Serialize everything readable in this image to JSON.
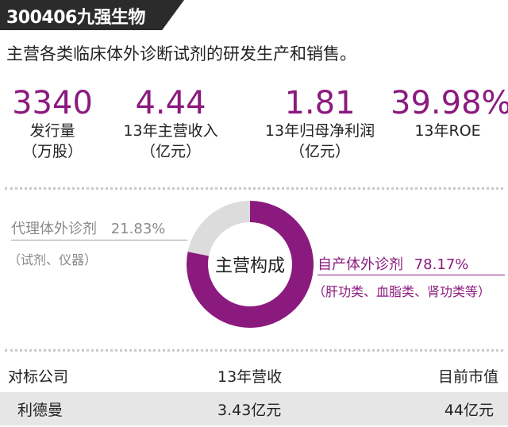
{
  "header": {
    "title": "300406九强生物",
    "subtitle": "主营各类临床体外诊断试剂的研发生产和销售。"
  },
  "stats": [
    {
      "value": "3340",
      "label1": "发行量",
      "label2": "（万股）"
    },
    {
      "value": "4.44",
      "label1": "13年主营收入",
      "label2": "（亿元）"
    },
    {
      "value": "1.81",
      "label1": "13年归母净利润",
      "label2": "（亿元）"
    },
    {
      "value": "39.98%",
      "label1": "13年ROE",
      "label2": ""
    }
  ],
  "chart_data": {
    "type": "pie",
    "title": "主营构成",
    "slices": [
      {
        "name": "自产体外诊剂",
        "value": 78.17,
        "value_label": "78.17%",
        "detail": "（肝功类、血脂类、肾功类等）",
        "color": "#8b1a7e"
      },
      {
        "name": "代理体外诊剂",
        "value": 21.83,
        "value_label": "21.83%",
        "detail": "（试剂、仪器）",
        "color": "#dcdcdc"
      }
    ]
  },
  "table": {
    "headers": [
      "对标公司",
      "13年营收",
      "目前市值"
    ],
    "rows": [
      [
        "利德曼",
        "3.43亿元",
        "44亿元"
      ]
    ]
  }
}
